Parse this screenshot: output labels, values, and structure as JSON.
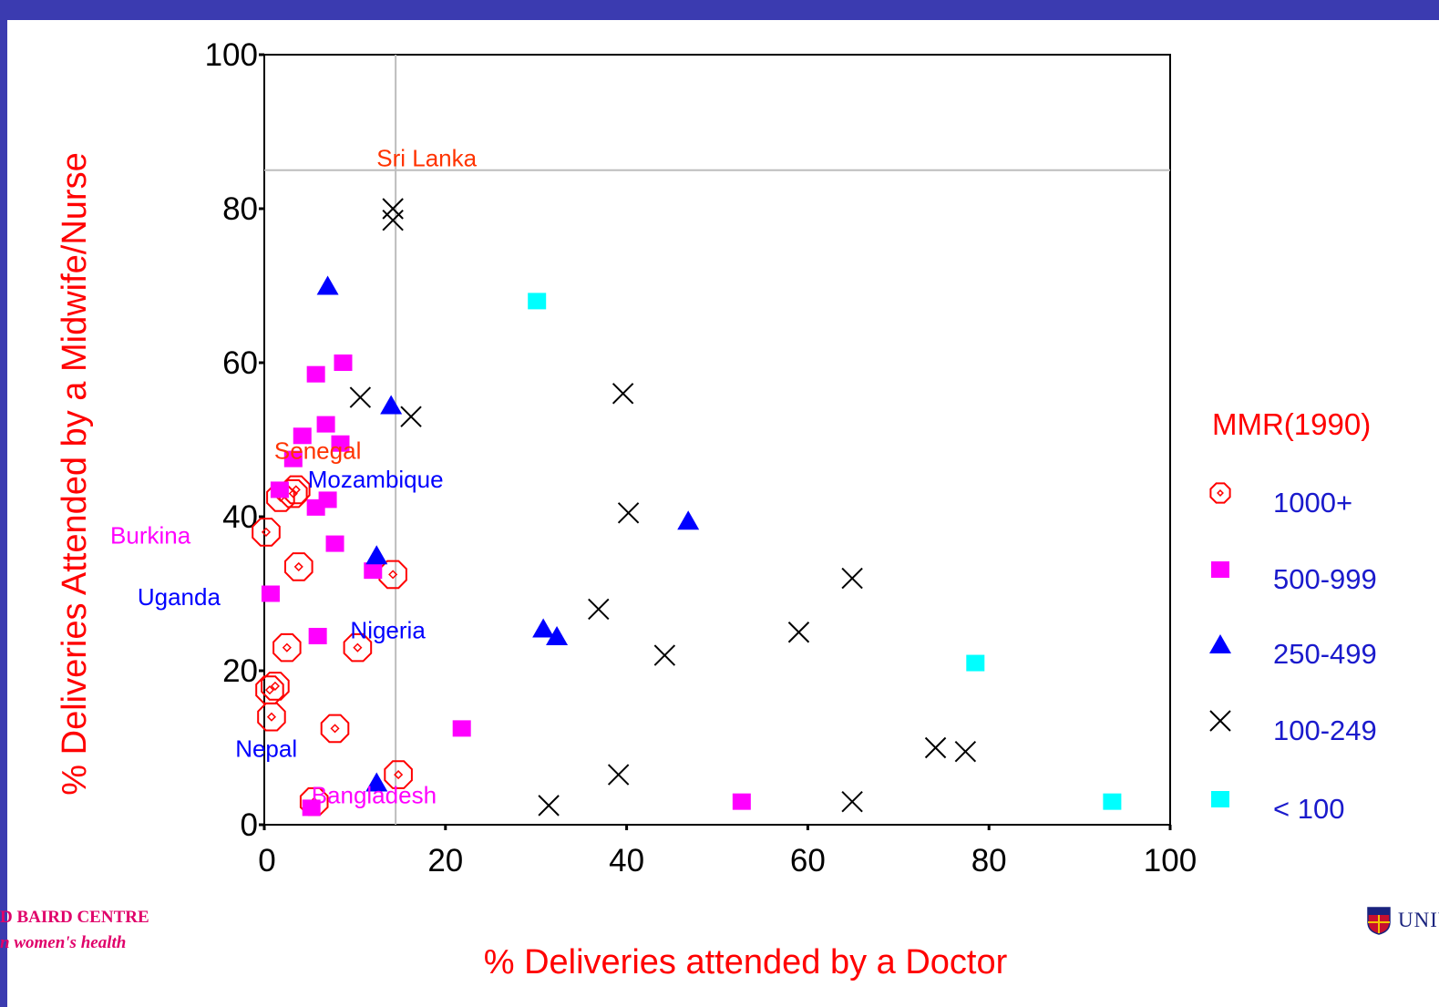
{
  "chart_data": {
    "type": "scatter",
    "title": "",
    "xlabel": "% Deliveries attended by a Doctor",
    "ylabel": "% Deliveries Attended by a Midwife/Nurse",
    "xlim": [
      0,
      100
    ],
    "ylim": [
      0,
      100
    ],
    "xticks": [
      "0",
      "20",
      "40",
      "60",
      "80",
      "100"
    ],
    "yticks": [
      "0",
      "20",
      "40",
      "60",
      "80",
      "100"
    ],
    "grid": false,
    "reference_lines": {
      "x": 14.5,
      "y": 85
    },
    "legend": {
      "title": "MMR(1990)",
      "position": "right"
    },
    "series": [
      {
        "name": "1000+",
        "marker": "octagon",
        "color": "#ff0000",
        "points": [
          [
            0.2,
            38
          ],
          [
            1.8,
            42.5
          ],
          [
            3.5,
            43.5
          ],
          [
            3.2,
            43
          ],
          [
            0.6,
            17.5
          ],
          [
            1.2,
            18
          ],
          [
            0.8,
            14
          ],
          [
            2.5,
            23
          ],
          [
            3.8,
            33.5
          ],
          [
            14.2,
            32.5
          ],
          [
            10.3,
            23
          ],
          [
            7.8,
            12.5
          ],
          [
            5.5,
            3
          ],
          [
            14.8,
            6.5
          ]
        ]
      },
      {
        "name": "500-999",
        "marker": "square",
        "color": "#ff00ff",
        "points": [
          [
            5.7,
            58.5
          ],
          [
            8.7,
            60
          ],
          [
            4.2,
            50.5
          ],
          [
            6.8,
            52
          ],
          [
            8.4,
            49.5
          ],
          [
            3.2,
            47.5
          ],
          [
            1.7,
            43.5
          ],
          [
            7,
            42.2
          ],
          [
            5.7,
            41.2
          ],
          [
            7.8,
            36.5
          ],
          [
            12,
            33
          ],
          [
            0.7,
            30
          ],
          [
            5.9,
            24.5
          ],
          [
            21.8,
            12.5
          ],
          [
            5.2,
            2.2
          ],
          [
            52.7,
            3
          ]
        ]
      },
      {
        "name": "250-499",
        "marker": "triangle",
        "color": "#0000ff",
        "points": [
          [
            7,
            70
          ],
          [
            14,
            54.5
          ],
          [
            12.4,
            35
          ],
          [
            46.8,
            39.5
          ],
          [
            30.8,
            25.5
          ],
          [
            32.3,
            24.5
          ],
          [
            12.4,
            5.5
          ]
        ]
      },
      {
        "name": "100-249",
        "marker": "x",
        "color": "#000000",
        "points": [
          [
            14.2,
            80
          ],
          [
            14.2,
            78.5
          ],
          [
            10.6,
            55.5
          ],
          [
            16.2,
            53
          ],
          [
            39.6,
            56
          ],
          [
            40.2,
            40.5
          ],
          [
            64.9,
            32
          ],
          [
            36.9,
            28
          ],
          [
            59,
            25
          ],
          [
            44.2,
            22
          ],
          [
            39.1,
            6.5
          ],
          [
            31.4,
            2.5
          ],
          [
            64.9,
            3
          ],
          [
            74.1,
            10
          ],
          [
            77.4,
            9.5
          ]
        ]
      },
      {
        "name": "< 100",
        "marker": "square",
        "color": "#00ffff",
        "points": [
          [
            30.1,
            68
          ],
          [
            78.5,
            21
          ],
          [
            93.6,
            3
          ]
        ]
      }
    ],
    "annotations": [
      {
        "text": "Sri Lanka",
        "x": 12.4,
        "y": 85.5,
        "color": "#ff3300"
      },
      {
        "text": "Senegal",
        "x": 1.1,
        "y": 47.5,
        "color": "#ff3300"
      },
      {
        "text": "Mozambique",
        "x": 4.8,
        "y": 43.8,
        "color": "#0000ff"
      },
      {
        "text": "Burkina",
        "x": -17,
        "y": 36.5,
        "color": "#ff00ff"
      },
      {
        "text": "Uganda",
        "x": -14,
        "y": 28.5,
        "color": "#0000ff"
      },
      {
        "text": "Nigeria",
        "x": 9.5,
        "y": 24.2,
        "color": "#0000ff"
      },
      {
        "text": "Nepal",
        "x": -3.2,
        "y": 8.8,
        "color": "#0000ff"
      },
      {
        "text": "Bangladesh",
        "x": 5.2,
        "y": 2.8,
        "color": "#ff00ff"
      }
    ]
  },
  "footer": {
    "centre_name": "D BAIRD CENTRE",
    "centre_tagline": "n women's health",
    "university": "UNIVERSITY o"
  },
  "colors": {
    "frame": "#3b3bb0",
    "axis_title": "#ff0000",
    "legend_text": "#1a1acc"
  }
}
